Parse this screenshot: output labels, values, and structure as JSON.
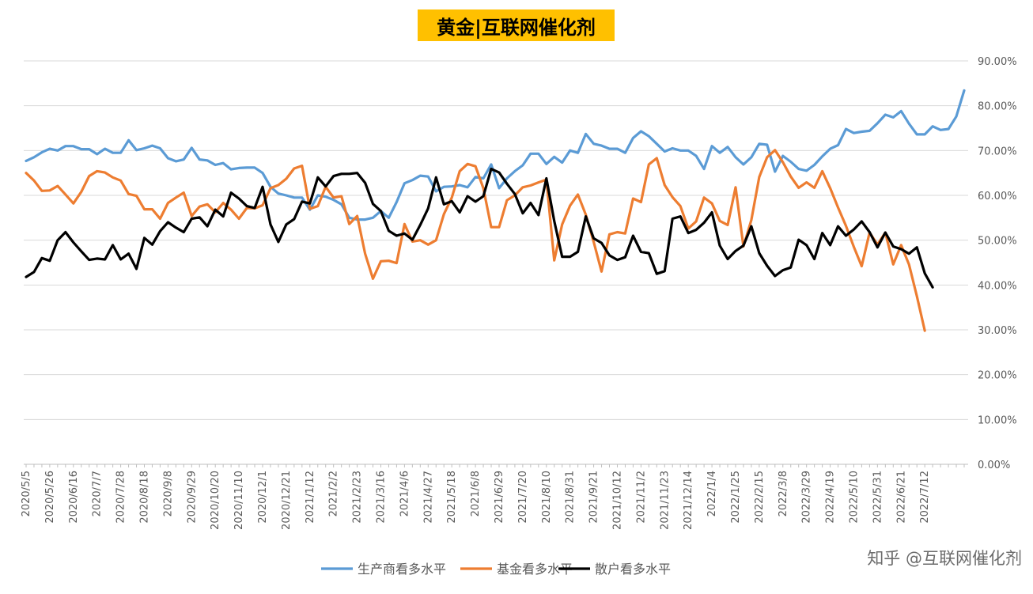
{
  "watermark": "知乎 @互联网催化剂",
  "chart_data": {
    "type": "line",
    "title": "黄金|互联网催化剂",
    "title_bg": "#ffc000",
    "ylim": [
      0,
      90
    ],
    "y_ticks": [
      "0.00%",
      "10.00%",
      "20.00%",
      "30.00%",
      "40.00%",
      "50.00%",
      "60.00%",
      "70.00%",
      "80.00%",
      "90.00%"
    ],
    "y_axis_side": "right",
    "grid": true,
    "legend_position": "bottom",
    "x_start": "2020/5/5",
    "x_step_days": 7,
    "x_tick_labels": [
      "2020/5/5",
      "2020/5/26",
      "2020/6/16",
      "2020/7/7",
      "2020/7/28",
      "2020/8/18",
      "2020/9/8",
      "2020/9/29",
      "2020/10/20",
      "2020/11/10",
      "2020/12/1",
      "2020/12/21",
      "2021/1/12",
      "2021/2/2",
      "2021/2/23",
      "2021/3/16",
      "2021/4/6",
      "2021/4/27",
      "2021/5/18",
      "2021/6/8",
      "2021/6/29",
      "2021/7/20",
      "2021/8/10",
      "2021/8/31",
      "2021/9/21",
      "2021/10/12",
      "2021/11/2",
      "2021/11/23",
      "2021/12/14",
      "2022/1/4",
      "2022/1/25",
      "2022/2/15",
      "2022/3/8",
      "2022/3/29",
      "2022/4/19",
      "2022/5/10",
      "2022/5/31",
      "2022/6/21",
      "2022/7/12"
    ],
    "series": [
      {
        "name": "生产商看多水平",
        "color": "#5b9bd5",
        "values": [
          67.7,
          68.5,
          69.6,
          70.4,
          70.0,
          71.0,
          71.0,
          70.3,
          70.3,
          69.2,
          70.4,
          69.5,
          69.5,
          72.3,
          70.1,
          70.5,
          71.1,
          70.5,
          68.3,
          67.6,
          68.0,
          70.6,
          68.0,
          67.8,
          66.8,
          67.2,
          65.8,
          66.1,
          66.2,
          66.2,
          65.0,
          61.9,
          60.4,
          60.0,
          59.5,
          59.5,
          56.8,
          60.0,
          59.7,
          59.0,
          58.0,
          55.0,
          54.6,
          54.6,
          55.0,
          56.5,
          55.0,
          58.5,
          62.7,
          63.4,
          64.4,
          64.2,
          60.9,
          61.9,
          62.0,
          62.3,
          61.8,
          64.1,
          63.8,
          66.9,
          61.6,
          63.8,
          65.4,
          66.7,
          69.3,
          69.3,
          67.0,
          68.6,
          67.3,
          70.0,
          69.5,
          73.7,
          71.5,
          71.1,
          70.4,
          70.4,
          69.5,
          72.8,
          74.3,
          73.2,
          71.5,
          69.8,
          70.5,
          70.0,
          70.0,
          68.8,
          65.9,
          71.0,
          69.5,
          70.8,
          68.5,
          66.9,
          68.5,
          71.5,
          71.3,
          65.3,
          68.8,
          67.5,
          65.9,
          65.5,
          66.8,
          68.7,
          70.4,
          71.2,
          74.8,
          73.9,
          74.2,
          74.4,
          76.1,
          78.0,
          77.4,
          78.8,
          76.0,
          73.6,
          73.6,
          75.4,
          74.6,
          74.8,
          77.6,
          83.4
        ]
      },
      {
        "name": "基金看多水平",
        "color": "#ed7d31",
        "values": [
          65.0,
          63.3,
          61.0,
          61.1,
          62.1,
          60.2,
          58.2,
          60.8,
          64.3,
          65.4,
          65.1,
          64.0,
          63.3,
          60.3,
          59.9,
          56.9,
          56.9,
          54.8,
          58.3,
          59.5,
          60.6,
          55.4,
          57.5,
          58.0,
          56.2,
          58.3,
          56.8,
          54.8,
          57.2,
          57.1,
          57.8,
          61.6,
          62.3,
          63.7,
          66.0,
          66.6,
          57.0,
          57.6,
          61.9,
          59.5,
          59.8,
          53.6,
          55.4,
          47.0,
          41.4,
          45.3,
          45.4,
          44.9,
          53.6,
          49.7,
          50.0,
          49.0,
          50.0,
          55.8,
          59.5,
          65.4,
          67.0,
          66.5,
          61.6,
          52.9,
          52.9,
          58.9,
          60.0,
          61.8,
          62.2,
          62.9,
          63.5,
          45.5,
          53.5,
          57.7,
          60.2,
          55.7,
          49.6,
          43.0,
          51.3,
          51.8,
          51.5,
          59.3,
          58.5,
          66.9,
          68.3,
          62.3,
          59.6,
          57.6,
          52.6,
          54.2,
          59.5,
          58.2,
          54.3,
          53.4,
          61.8,
          48.6,
          54.5,
          64.1,
          68.5,
          70.1,
          67.4,
          64.2,
          61.7,
          62.9,
          61.7,
          65.4,
          61.6,
          57.3,
          53.2,
          48.5,
          44.2,
          51.7,
          49.0,
          51.7,
          44.6,
          48.9,
          44.6,
          37.5,
          29.8
        ]
      },
      {
        "name": "散户看多水平",
        "color": "#000000",
        "values": [
          41.8,
          42.9,
          46.0,
          45.4,
          50.0,
          51.8,
          49.5,
          47.5,
          45.6,
          45.9,
          45.7,
          48.9,
          45.7,
          47.0,
          43.6,
          50.5,
          49.0,
          52.0,
          54.0,
          52.8,
          51.8,
          54.8,
          55.1,
          53.1,
          56.8,
          55.3,
          60.6,
          59.3,
          57.6,
          57.2,
          61.9,
          53.5,
          49.6,
          53.5,
          54.7,
          58.6,
          58.2,
          64.0,
          62.0,
          64.3,
          64.8,
          64.8,
          65.0,
          62.8,
          58.1,
          56.5,
          52.1,
          51.0,
          51.5,
          50.1,
          53.4,
          57.1,
          64.0,
          58.0,
          58.7,
          56.2,
          59.8,
          58.6,
          59.8,
          65.9,
          65.1,
          62.6,
          60.3,
          56.0,
          58.3,
          55.6,
          63.8,
          54.3,
          46.3,
          46.3,
          47.4,
          55.3,
          50.4,
          49.4,
          46.6,
          45.6,
          46.2,
          51.0,
          47.4,
          47.1,
          42.5,
          43.1,
          54.8,
          55.3,
          51.6,
          52.3,
          53.9,
          56.2,
          48.8,
          45.8,
          47.6,
          48.8,
          53.1,
          47.1,
          44.3,
          42.0,
          43.3,
          43.9,
          50.1,
          48.9,
          45.8,
          51.6,
          48.9,
          53.1,
          51.0,
          52.4,
          54.2,
          51.8,
          48.4,
          51.7,
          48.6,
          48.0,
          47.0,
          48.4,
          42.6,
          39.5
        ]
      }
    ]
  }
}
